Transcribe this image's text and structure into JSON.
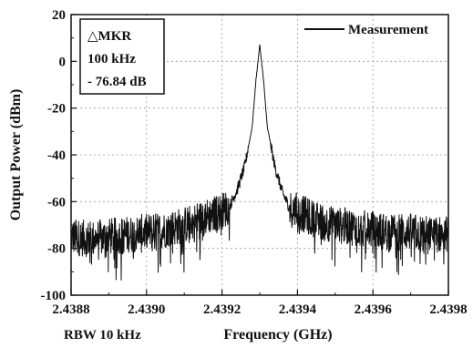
{
  "chart_data": {
    "type": "line",
    "title": "",
    "xlabel": "Frequency (GHz)",
    "ylabel": "Output Power (dBm)",
    "xlim": [
      2.4388,
      2.4398
    ],
    "ylim": [
      -100,
      20
    ],
    "x_ticks": [
      "2.4388",
      "2.4390",
      "2.4392",
      "2.4394",
      "2.4396",
      "2.4398"
    ],
    "y_ticks": [
      "20",
      "0",
      "-20",
      "-40",
      "-60",
      "-80",
      "-100"
    ],
    "grid": true,
    "legend_position": "top-right",
    "series": [
      {
        "name": "Measurement",
        "x": [
          2.4388,
          2.43885,
          2.4389,
          2.43895,
          2.439,
          2.43905,
          2.4391,
          2.43915,
          2.4392,
          2.43922,
          2.43924,
          2.43926,
          2.43928,
          2.43929,
          2.4393,
          2.43931,
          2.43932,
          2.43934,
          2.43936,
          2.43938,
          2.4394,
          2.43945,
          2.4395,
          2.43955,
          2.4396,
          2.43965,
          2.4397,
          2.43975,
          2.4398
        ],
        "y": [
          -75,
          -76,
          -75,
          -74,
          -73,
          -72,
          -70,
          -67,
          -64,
          -62,
          -55,
          -45,
          -28,
          -8,
          7,
          -8,
          -28,
          -45,
          -56,
          -63,
          -64,
          -68,
          -70,
          -71,
          -72,
          -73,
          -73,
          -74,
          -74
        ]
      }
    ],
    "annotations": {
      "marker_title": "△MKR",
      "marker_freq": "100 kHz",
      "marker_level": "- 76.84 dB",
      "footnote": "RBW 10 kHz"
    }
  },
  "colors": {
    "line": "#111111",
    "grid": "#9a9a9a",
    "background": "#ffffff"
  }
}
